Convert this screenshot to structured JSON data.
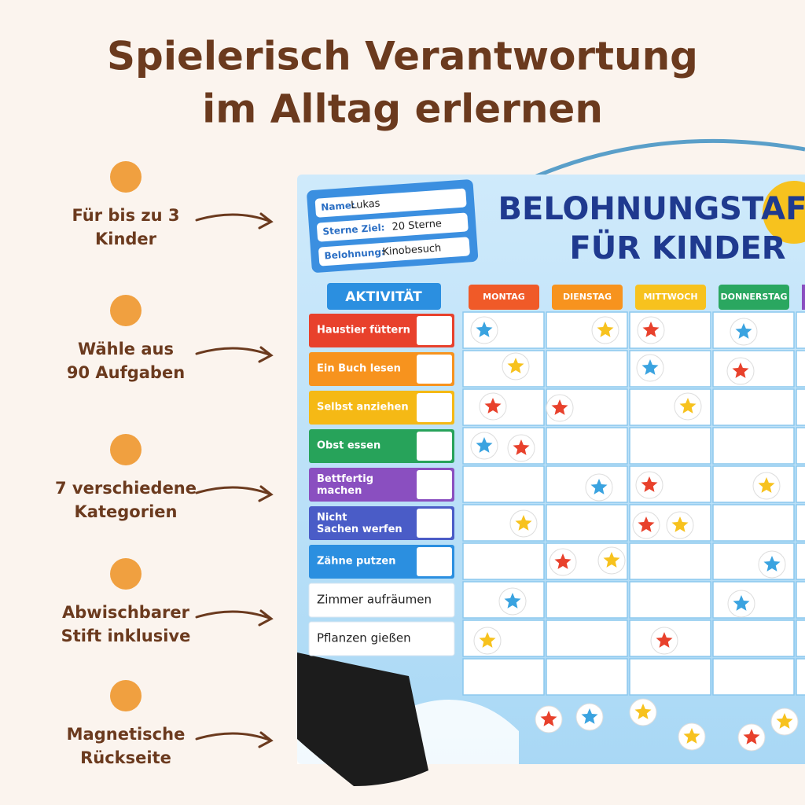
{
  "header": {
    "title": [
      "Spielerisch Verantwortung",
      "im Alltag erlernen"
    ]
  },
  "features": [
    {
      "lines": [
        "Für bis zu 3",
        "Kinder"
      ]
    },
    {
      "lines": [
        "Wähle aus",
        "90 Aufgaben"
      ]
    },
    {
      "lines": [
        "7 verschiedene",
        "Kategorien"
      ]
    },
    {
      "lines": [
        "Abwischbarer",
        "Stift inklusive"
      ]
    },
    {
      "lines": [
        "Magnetische",
        "Rückseite"
      ]
    }
  ],
  "board": {
    "tag": [
      {
        "label": "Name:",
        "value": "Lukas"
      },
      {
        "label": "Sterne Ziel:",
        "value": "20 Sterne"
      },
      {
        "label": "Belohnung:",
        "value": "Kinobesuch"
      }
    ],
    "title": [
      "BELOHNUNGSTAF",
      "FÜR KINDER"
    ],
    "activity_header": "AKTIVITÄT",
    "days": [
      "MONTAG",
      "DIENSTAG",
      "MITTWOCH",
      "DONNERSTAG"
    ],
    "activities": [
      {
        "label": "Haustier füttern",
        "color": "#e8412c"
      },
      {
        "label": "Ein Buch lesen",
        "color": "#f7931e"
      },
      {
        "label": "Selbst anziehen",
        "color": "#f5b915"
      },
      {
        "label": "Obst essen",
        "color": "#27a35a"
      },
      {
        "label": "Bettfertig machen",
        "color": "#8a4fc0"
      },
      {
        "label": "Nicht Sachen werfen",
        "color": "#4a5cc7"
      },
      {
        "label": "Zähne putzen",
        "color": "#2b8fe0"
      },
      {
        "label": "Zimmer aufräumen",
        "color": null
      },
      {
        "label": "Pflanzen gießen",
        "color": null
      }
    ]
  }
}
